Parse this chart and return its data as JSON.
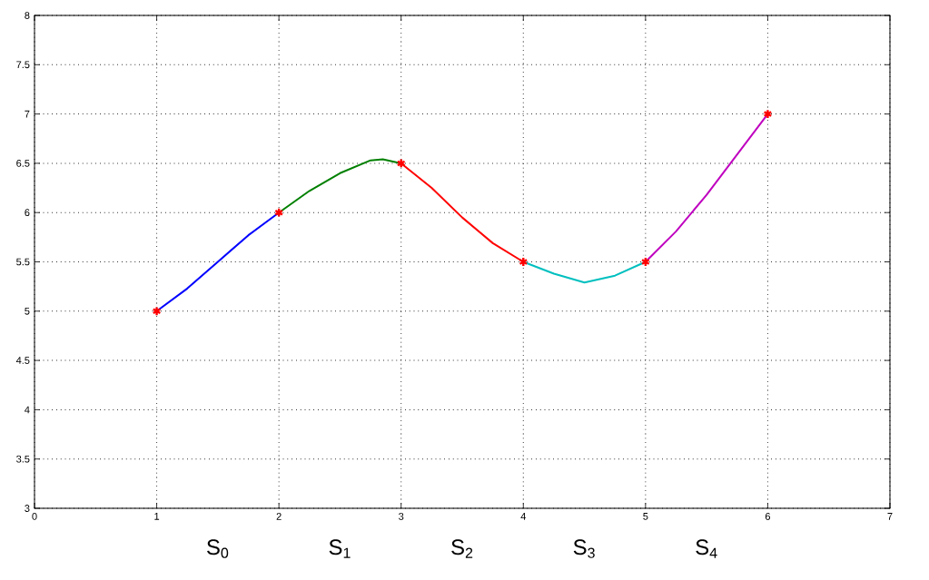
{
  "chart_data": {
    "type": "line",
    "xlim": [
      0,
      7
    ],
    "ylim": [
      3,
      8
    ],
    "xticks": [
      0,
      1,
      2,
      3,
      4,
      5,
      6,
      7
    ],
    "yticks": [
      3,
      3.5,
      4,
      4.5,
      5,
      5.5,
      6,
      6.5,
      7,
      7.5,
      8
    ],
    "grid": true,
    "series": [
      {
        "color": "#0000ff",
        "x": [
          1,
          1.25,
          1.5,
          1.75,
          2
        ],
        "values": [
          5,
          5.23,
          5.5,
          5.77,
          6
        ]
      },
      {
        "color": "#008000",
        "x": [
          2,
          2.25,
          2.5,
          2.75,
          2.85,
          3
        ],
        "values": [
          6,
          6.22,
          6.4,
          6.53,
          6.54,
          6.5
        ]
      },
      {
        "color": "#ff0000",
        "x": [
          3,
          3.25,
          3.5,
          3.75,
          4
        ],
        "values": [
          6.5,
          6.25,
          5.95,
          5.69,
          5.5
        ]
      },
      {
        "color": "#00bfbf",
        "x": [
          4,
          4.25,
          4.5,
          4.75,
          5
        ],
        "values": [
          5.5,
          5.38,
          5.29,
          5.36,
          5.5
        ]
      },
      {
        "color": "#bf00bf",
        "x": [
          5,
          5.25,
          5.5,
          5.75,
          6
        ],
        "values": [
          5.5,
          5.81,
          6.18,
          6.59,
          7
        ]
      },
      {
        "type": "scatter",
        "color": "#ff0000",
        "marker": "cross",
        "x": [
          1,
          2,
          3,
          4,
          5,
          6
        ],
        "values": [
          5,
          6,
          6.5,
          5.5,
          5.5,
          7
        ]
      }
    ],
    "annotations": [
      "S$_{0}$",
      "S$_{1}$",
      "S$_{2}$",
      "S$_{3}$",
      "S$_{4}$"
    ]
  }
}
